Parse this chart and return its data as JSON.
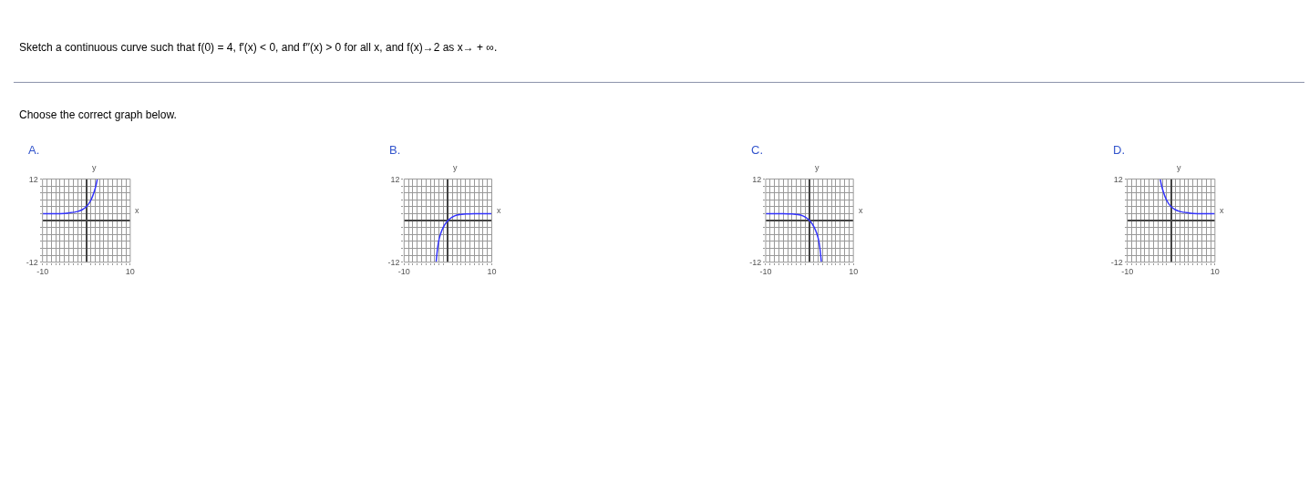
{
  "chart_data": [
    {
      "type": "line",
      "title": "A.",
      "xlabel": "x",
      "ylabel": "y",
      "annotations": [
        "Sketch a continuous curve such that f(0) = 4, f′(x) < 0, and f′′(x) > 0 for all x, and f(x)→2 as x→ + ∞.",
        "Choose the correct graph below."
      ],
      "x": [
        -10,
        -6,
        -4,
        -2,
        -1,
        0,
        1,
        2,
        2.5
      ],
      "series": [
        {
          "color": "#3333ff",
          "values": [
            2,
            2,
            2.2,
            2.6,
            3.1,
            4,
            5.8,
            9.2,
            12
          ]
        }
      ],
      "xlim": [
        -10,
        10
      ],
      "ylim": [
        -12,
        12
      ],
      "xticks": [
        -10,
        {
          "value": -9,
          "label": null
        },
        {
          "value": -8,
          "label": null
        },
        {
          "value": -7,
          "label": null
        },
        {
          "value": -6,
          "label": null
        },
        {
          "value": -5,
          "label": null
        },
        {
          "value": -4,
          "label": null
        },
        {
          "value": -3,
          "label": null
        },
        {
          "value": -2,
          "label": null
        },
        {
          "value": -1,
          "label": null
        },
        {
          "value": 1,
          "label": null
        },
        {
          "value": 2,
          "label": null
        },
        {
          "value": 3,
          "label": null
        },
        {
          "value": 4,
          "label": null
        },
        {
          "value": 5,
          "label": null
        },
        {
          "value": 6,
          "label": null
        },
        {
          "value": 7,
          "label": null
        },
        {
          "value": 8,
          "label": null
        },
        {
          "value": 9,
          "label": null
        },
        10
      ],
      "yticks": [
        -12,
        {
          "value": -10,
          "label": null
        },
        {
          "value": -8,
          "label": null
        },
        {
          "value": -6,
          "label": null
        },
        {
          "value": -4,
          "label": null
        },
        {
          "value": -2,
          "label": null
        },
        {
          "value": 2,
          "label": null
        },
        {
          "value": 4,
          "label": null
        },
        {
          "value": 6,
          "label": null
        },
        {
          "value": 8,
          "label": null
        },
        {
          "value": 10,
          "label": null
        },
        12
      ],
      "grid": true,
      "line_style": "solid",
      "marker": "none"
    },
    {
      "type": "line",
      "title": "B.",
      "xlabel": "x",
      "ylabel": "y",
      "x": [
        -2.7,
        -2,
        -1,
        0,
        1,
        2,
        4,
        6,
        10
      ],
      "series": [
        {
          "color": "#3333ff",
          "values": [
            -12,
            -5.2,
            -1.8,
            0,
            1,
            1.6,
            1.9,
            2,
            2
          ]
        }
      ],
      "xlim": [
        -10,
        10
      ],
      "ylim": [
        -12,
        12
      ],
      "xticks": [
        -10,
        {
          "value": -9,
          "label": null
        },
        {
          "value": -8,
          "label": null
        },
        {
          "value": -7,
          "label": null
        },
        {
          "value": -6,
          "label": null
        },
        {
          "value": -5,
          "label": null
        },
        {
          "value": -4,
          "label": null
        },
        {
          "value": -3,
          "label": null
        },
        {
          "value": -2,
          "label": null
        },
        {
          "value": -1,
          "label": null
        },
        {
          "value": 1,
          "label": null
        },
        {
          "value": 2,
          "label": null
        },
        {
          "value": 3,
          "label": null
        },
        {
          "value": 4,
          "label": null
        },
        {
          "value": 5,
          "label": null
        },
        {
          "value": 6,
          "label": null
        },
        {
          "value": 7,
          "label": null
        },
        {
          "value": 8,
          "label": null
        },
        {
          "value": 9,
          "label": null
        },
        10
      ],
      "yticks": [
        -12,
        {
          "value": -10,
          "label": null
        },
        {
          "value": -8,
          "label": null
        },
        {
          "value": -6,
          "label": null
        },
        {
          "value": -4,
          "label": null
        },
        {
          "value": -2,
          "label": null
        },
        {
          "value": 2,
          "label": null
        },
        {
          "value": 4,
          "label": null
        },
        {
          "value": 6,
          "label": null
        },
        {
          "value": 8,
          "label": null
        },
        {
          "value": 10,
          "label": null
        },
        12
      ],
      "grid": true,
      "line_style": "solid",
      "marker": "none"
    },
    {
      "type": "line",
      "title": "C.",
      "xlabel": "x",
      "ylabel": "y",
      "x": [
        -10,
        -6,
        -4,
        -2,
        -1,
        0,
        1,
        2,
        2.7
      ],
      "series": [
        {
          "color": "#3333ff",
          "values": [
            2,
            2,
            1.9,
            1.6,
            1,
            0,
            -1.8,
            -5.2,
            -12
          ]
        }
      ],
      "xlim": [
        -10,
        10
      ],
      "ylim": [
        -12,
        12
      ],
      "xticks": [
        -10,
        {
          "value": -9,
          "label": null
        },
        {
          "value": -8,
          "label": null
        },
        {
          "value": -7,
          "label": null
        },
        {
          "value": -6,
          "label": null
        },
        {
          "value": -5,
          "label": null
        },
        {
          "value": -4,
          "label": null
        },
        {
          "value": -3,
          "label": null
        },
        {
          "value": -2,
          "label": null
        },
        {
          "value": -1,
          "label": null
        },
        {
          "value": 1,
          "label": null
        },
        {
          "value": 2,
          "label": null
        },
        {
          "value": 3,
          "label": null
        },
        {
          "value": 4,
          "label": null
        },
        {
          "value": 5,
          "label": null
        },
        {
          "value": 6,
          "label": null
        },
        {
          "value": 7,
          "label": null
        },
        {
          "value": 8,
          "label": null
        },
        {
          "value": 9,
          "label": null
        },
        10
      ],
      "yticks": [
        -12,
        {
          "value": -10,
          "label": null
        },
        {
          "value": -8,
          "label": null
        },
        {
          "value": -6,
          "label": null
        },
        {
          "value": -4,
          "label": null
        },
        {
          "value": -2,
          "label": null
        },
        {
          "value": 2,
          "label": null
        },
        {
          "value": 4,
          "label": null
        },
        {
          "value": 6,
          "label": null
        },
        {
          "value": 8,
          "label": null
        },
        {
          "value": 10,
          "label": null
        },
        12
      ],
      "grid": true,
      "line_style": "solid",
      "marker": "none"
    },
    {
      "type": "line",
      "title": "D.",
      "xlabel": "x",
      "ylabel": "y",
      "x": [
        -2.5,
        -2,
        -1,
        0,
        1,
        2,
        4,
        6,
        10
      ],
      "series": [
        {
          "color": "#3333ff",
          "values": [
            12,
            9.2,
            5.8,
            4,
            3.1,
            2.6,
            2.2,
            2,
            2
          ]
        }
      ],
      "xlim": [
        -10,
        10
      ],
      "ylim": [
        -12,
        12
      ],
      "xticks": [
        -10,
        {
          "value": -9,
          "label": null
        },
        {
          "value": -8,
          "label": null
        },
        {
          "value": -7,
          "label": null
        },
        {
          "value": -6,
          "label": null
        },
        {
          "value": -5,
          "label": null
        },
        {
          "value": -4,
          "label": null
        },
        {
          "value": -3,
          "label": null
        },
        {
          "value": -2,
          "label": null
        },
        {
          "value": -1,
          "label": null
        },
        {
          "value": 1,
          "label": null
        },
        {
          "value": 2,
          "label": null
        },
        {
          "value": 3,
          "label": null
        },
        {
          "value": 4,
          "label": null
        },
        {
          "value": 5,
          "label": null
        },
        {
          "value": 6,
          "label": null
        },
        {
          "value": 7,
          "label": null
        },
        {
          "value": 8,
          "label": null
        },
        {
          "value": 9,
          "label": null
        },
        10
      ],
      "yticks": [
        -12,
        {
          "value": -10,
          "label": null
        },
        {
          "value": -8,
          "label": null
        },
        {
          "value": -6,
          "label": null
        },
        {
          "value": -4,
          "label": null
        },
        {
          "value": -2,
          "label": null
        },
        {
          "value": 2,
          "label": null
        },
        {
          "value": 4,
          "label": null
        },
        {
          "value": 6,
          "label": null
        },
        {
          "value": 8,
          "label": null
        },
        {
          "value": 10,
          "label": null
        },
        12
      ],
      "grid": true,
      "line_style": "solid",
      "marker": "none"
    }
  ]
}
